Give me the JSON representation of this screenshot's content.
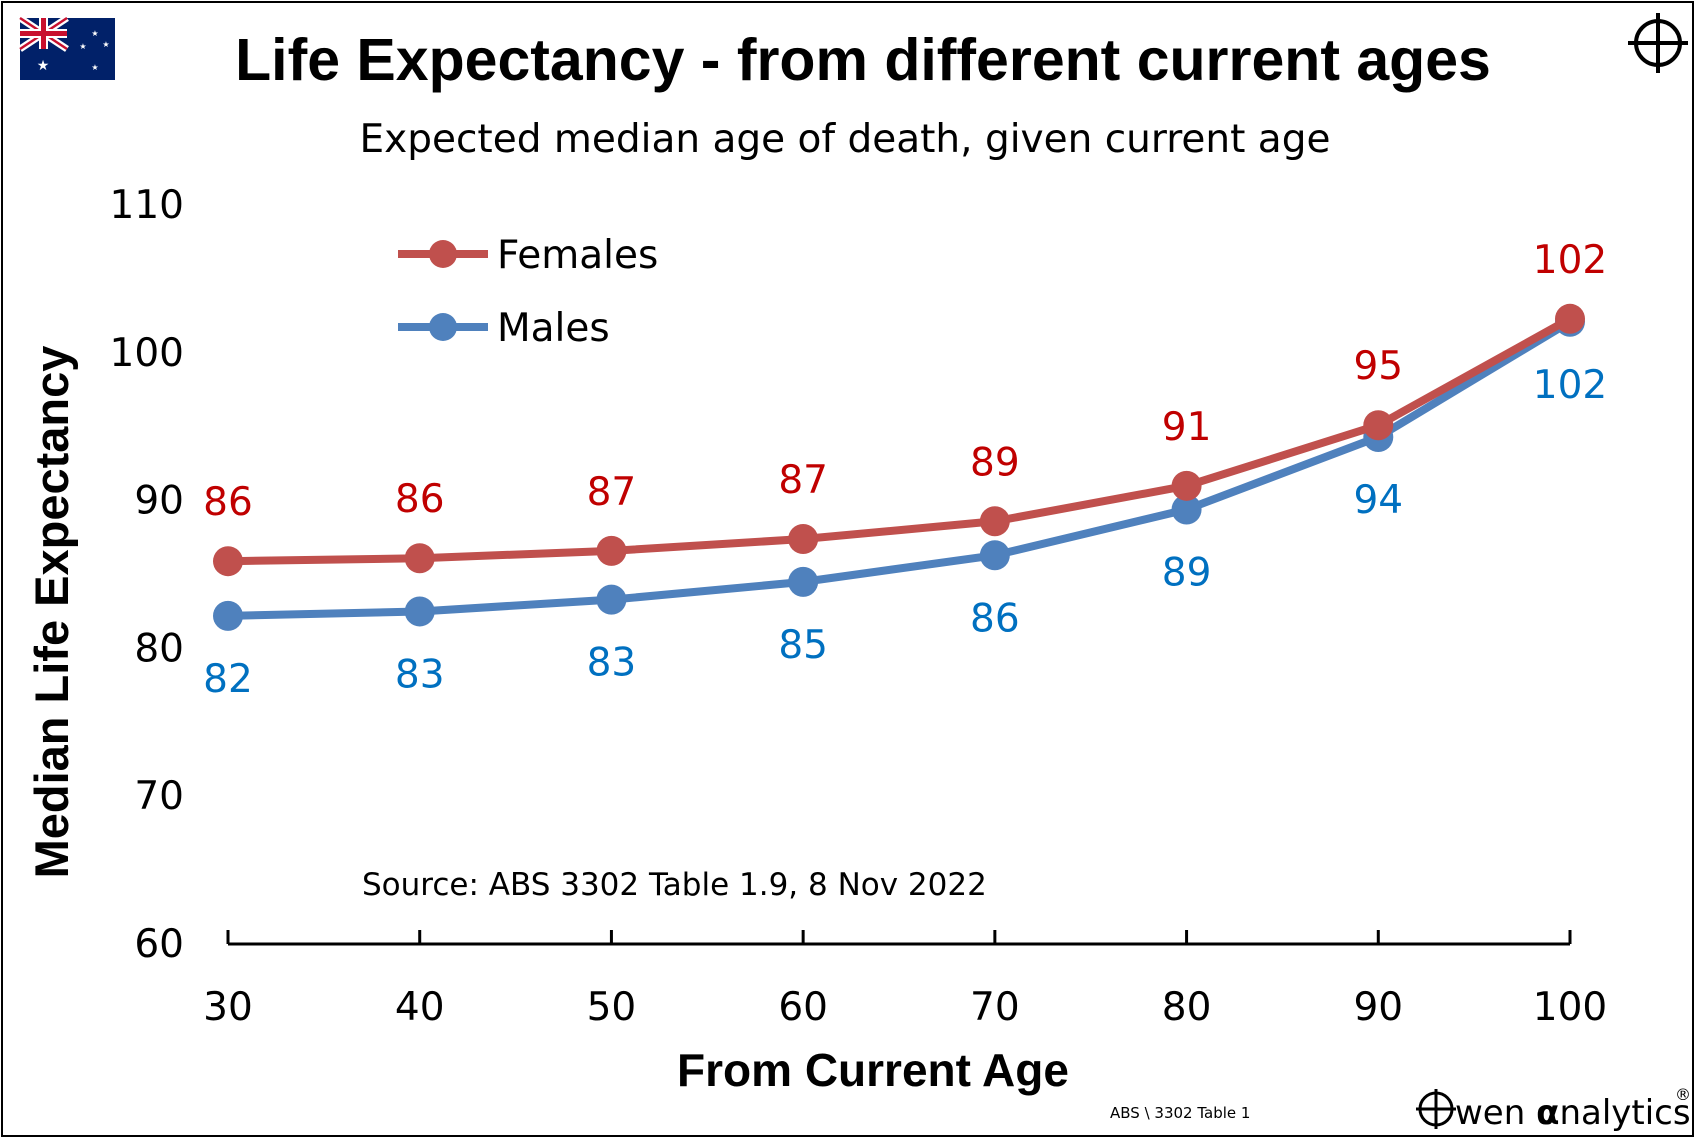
{
  "chart_data": {
    "type": "line",
    "title": "Life Expectancy - from different current ages",
    "subtitle": "Expected median age of death, given current age",
    "xlabel": "From Current Age",
    "ylabel": "Median Life Expectancy",
    "x": [
      30,
      40,
      50,
      60,
      70,
      80,
      90,
      100
    ],
    "x_tick_labels": [
      "30",
      "40",
      "50",
      "60",
      "70",
      "80",
      "90",
      "100"
    ],
    "ylim": [
      60,
      110
    ],
    "y_ticks": [
      60,
      70,
      80,
      90,
      100,
      110
    ],
    "y_tick_labels": [
      "60",
      "70",
      "80",
      "90",
      "100",
      "110"
    ],
    "grid": false,
    "legend_position": "top-left",
    "series": [
      {
        "name": "Females",
        "color": "#C0504D",
        "label_color": "#C00000",
        "values": [
          85.9,
          86.1,
          86.6,
          87.4,
          88.6,
          91.0,
          95.1,
          102.3
        ],
        "data_labels": [
          "86",
          "86",
          "87",
          "87",
          "89",
          "91",
          "95",
          "102"
        ]
      },
      {
        "name": "Males",
        "color": "#4F81BD",
        "label_color": "#0070C0",
        "values": [
          82.2,
          82.5,
          83.3,
          84.5,
          86.3,
          89.4,
          94.3,
          102.1
        ],
        "data_labels": [
          "82",
          "83",
          "83",
          "85",
          "86",
          "89",
          "94",
          "102"
        ]
      }
    ],
    "annotations": {
      "source": "Source: ABS 3302 Table 1.9,  8 Nov 2022",
      "file_ref": "ABS \\  3302 Table 1"
    }
  },
  "branding": {
    "logo_text_pre": "wen ",
    "logo_text_alpha": "α",
    "logo_text_post": "nalytics",
    "registered": "®",
    "flag_icon": "australia-flag-icon",
    "crosshair_icon": "crosshair-icon"
  }
}
